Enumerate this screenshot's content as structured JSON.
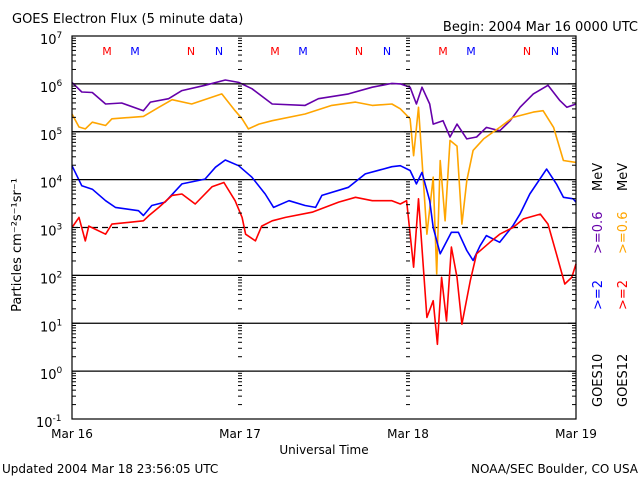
{
  "chart_data": {
    "type": "line",
    "title": "GOES Electron Flux (5 minute data)",
    "begin_label": "Begin: 2004 Mar 16 0000 UTC",
    "xlabel": "Universal Time",
    "ylabel": "Particles cm⁻²s⁻¹sr⁻¹",
    "updated_label": "Updated 2004 Mar 18 23:56:05 UTC",
    "credit_label": "NOAA/SEC Boulder, CO USA",
    "x_unit": "hours since 2004 Mar 16 0000 UTC",
    "xlim": [
      0,
      72
    ],
    "x_ticks": [
      {
        "hour": 0,
        "label": "Mar 16"
      },
      {
        "hour": 24,
        "label": "Mar 17"
      },
      {
        "hour": 48,
        "label": "Mar 18"
      },
      {
        "hour": 72,
        "label": "Mar 19"
      }
    ],
    "y_scale": "log",
    "ylim_log10": [
      -1,
      7
    ],
    "y_tick_base": "10",
    "y_tick_exponents": [
      "-1",
      "0",
      "1",
      "2",
      "3",
      "4",
      "5",
      "6",
      "7"
    ],
    "solid_gridlines_log10": [
      0,
      1,
      2,
      4,
      5,
      6
    ],
    "dashed_gridline_log10": 3,
    "markers": [
      {
        "label": "M",
        "hour": 5,
        "color": "#ff0000"
      },
      {
        "label": "M",
        "hour": 9,
        "color": "#0000ff"
      },
      {
        "label": "N",
        "hour": 17,
        "color": "#ff0000"
      },
      {
        "label": "N",
        "hour": 21,
        "color": "#0000ff"
      },
      {
        "label": "M",
        "hour": 29,
        "color": "#ff0000"
      },
      {
        "label": "M",
        "hour": 33,
        "color": "#0000ff"
      },
      {
        "label": "N",
        "hour": 41,
        "color": "#ff0000"
      },
      {
        "label": "N",
        "hour": 45,
        "color": "#0000ff"
      },
      {
        "label": "M",
        "hour": 53,
        "color": "#ff0000"
      },
      {
        "label": "M",
        "hour": 57,
        "color": "#0000ff"
      },
      {
        "label": "N",
        "hour": 65,
        "color": "#ff0000"
      },
      {
        "label": "N",
        "hour": 69,
        "color": "#0000ff"
      }
    ],
    "legend": {
      "goes10": {
        "sat": "GOES10",
        "e2": ">=2",
        "e06": ">=0.6",
        "unit": "MeV"
      },
      "goes12": {
        "sat": "GOES12",
        "e2": ">=2",
        "e06": ">=0.6",
        "unit": "MeV"
      }
    },
    "series": [
      {
        "name": "GOES10 >=0.6 MeV",
        "color": "#6600aa",
        "points": [
          [
            0,
            6.03
          ],
          [
            1.4,
            5.83
          ],
          [
            2.9,
            5.82
          ],
          [
            4.8,
            5.58
          ],
          [
            7.1,
            5.6
          ],
          [
            10.2,
            5.44
          ],
          [
            11.2,
            5.62
          ],
          [
            13.8,
            5.69
          ],
          [
            15.7,
            5.86
          ],
          [
            19,
            5.97
          ],
          [
            21.9,
            6.08
          ],
          [
            23.8,
            6.03
          ],
          [
            25.7,
            5.9
          ],
          [
            28.6,
            5.58
          ],
          [
            33.3,
            5.55
          ],
          [
            35.2,
            5.69
          ],
          [
            39.5,
            5.79
          ],
          [
            42.9,
            5.93
          ],
          [
            45.7,
            6.01
          ],
          [
            46.9,
            6.0
          ],
          [
            48.3,
            5.93
          ],
          [
            49.2,
            5.58
          ],
          [
            50,
            5.93
          ],
          [
            51.1,
            5.58
          ],
          [
            51.6,
            5.16
          ],
          [
            53,
            5.23
          ],
          [
            54,
            4.89
          ],
          [
            55,
            5.16
          ],
          [
            56.4,
            4.85
          ],
          [
            57.8,
            4.89
          ],
          [
            59.2,
            5.09
          ],
          [
            61.1,
            5.02
          ],
          [
            62.6,
            5.23
          ],
          [
            64,
            5.51
          ],
          [
            65.9,
            5.79
          ],
          [
            68,
            5.97
          ],
          [
            69.7,
            5.65
          ],
          [
            70.7,
            5.51
          ],
          [
            72,
            5.58
          ]
        ]
      },
      {
        "name": "GOES12 >=0.6 MeV",
        "color": "#ffa500",
        "points": [
          [
            0,
            5.37
          ],
          [
            1,
            5.1
          ],
          [
            1.9,
            5.06
          ],
          [
            2.9,
            5.2
          ],
          [
            4.8,
            5.13
          ],
          [
            5.7,
            5.27
          ],
          [
            10.2,
            5.32
          ],
          [
            12.4,
            5.51
          ],
          [
            14.3,
            5.67
          ],
          [
            17.1,
            5.58
          ],
          [
            21.4,
            5.79
          ],
          [
            23.3,
            5.44
          ],
          [
            24.3,
            5.27
          ],
          [
            25.2,
            5.06
          ],
          [
            26.7,
            5.16
          ],
          [
            28.6,
            5.23
          ],
          [
            33.3,
            5.37
          ],
          [
            37.1,
            5.55
          ],
          [
            40.5,
            5.62
          ],
          [
            42.9,
            5.55
          ],
          [
            45.7,
            5.58
          ],
          [
            46.9,
            5.48
          ],
          [
            48.3,
            5.27
          ],
          [
            48.8,
            4.5
          ],
          [
            49.5,
            5.51
          ],
          [
            50.7,
            2.86
          ],
          [
            51.6,
            4.05
          ],
          [
            52.1,
            2.03
          ],
          [
            52.6,
            4.4
          ],
          [
            53.3,
            3.14
          ],
          [
            54,
            4.82
          ],
          [
            55,
            4.7
          ],
          [
            55.7,
            3.07
          ],
          [
            56.4,
            3.98
          ],
          [
            57.3,
            4.61
          ],
          [
            58.8,
            4.85
          ],
          [
            61.1,
            5.09
          ],
          [
            63,
            5.3
          ],
          [
            65.9,
            5.41
          ],
          [
            67.3,
            5.44
          ],
          [
            68.8,
            5.09
          ],
          [
            70.2,
            4.4
          ],
          [
            72,
            4.36
          ]
        ]
      },
      {
        "name": "GOES10 >=2 MeV",
        "color": "#0000ff",
        "points": [
          [
            0,
            4.29
          ],
          [
            1.4,
            3.87
          ],
          [
            2.9,
            3.8
          ],
          [
            4.8,
            3.56
          ],
          [
            6.2,
            3.42
          ],
          [
            9.5,
            3.35
          ],
          [
            10.2,
            3.25
          ],
          [
            11.4,
            3.46
          ],
          [
            13.3,
            3.53
          ],
          [
            15.7,
            3.91
          ],
          [
            19,
            4.01
          ],
          [
            20.5,
            4.26
          ],
          [
            21.9,
            4.41
          ],
          [
            23.8,
            4.29
          ],
          [
            25.7,
            4.05
          ],
          [
            27.6,
            3.7
          ],
          [
            28.8,
            3.42
          ],
          [
            31,
            3.56
          ],
          [
            33.3,
            3.46
          ],
          [
            34.8,
            3.42
          ],
          [
            35.7,
            3.67
          ],
          [
            39.5,
            3.84
          ],
          [
            41.9,
            4.12
          ],
          [
            45.7,
            4.27
          ],
          [
            46.9,
            4.29
          ],
          [
            48.3,
            4.19
          ],
          [
            49.2,
            3.91
          ],
          [
            50,
            4.15
          ],
          [
            51.1,
            3.56
          ],
          [
            51.6,
            3.0
          ],
          [
            52.6,
            2.45
          ],
          [
            54.2,
            2.9
          ],
          [
            55.2,
            2.9
          ],
          [
            56.4,
            2.52
          ],
          [
            57.3,
            2.31
          ],
          [
            58.3,
            2.62
          ],
          [
            59.2,
            2.83
          ],
          [
            61.1,
            2.69
          ],
          [
            63,
            3.04
          ],
          [
            64,
            3.28
          ],
          [
            65.4,
            3.7
          ],
          [
            67.8,
            4.22
          ],
          [
            69.2,
            3.91
          ],
          [
            70.2,
            3.63
          ],
          [
            71.6,
            3.6
          ],
          [
            72,
            3.53
          ]
        ]
      },
      {
        "name": "GOES12 >=2 MeV",
        "color": "#ff0000",
        "points": [
          [
            0,
            3.0
          ],
          [
            1,
            3.21
          ],
          [
            1.9,
            2.72
          ],
          [
            2.4,
            3.03
          ],
          [
            4.8,
            2.86
          ],
          [
            5.7,
            3.07
          ],
          [
            10.2,
            3.14
          ],
          [
            11,
            3.25
          ],
          [
            12.4,
            3.42
          ],
          [
            14.3,
            3.67
          ],
          [
            15.7,
            3.7
          ],
          [
            17.6,
            3.49
          ],
          [
            20,
            3.85
          ],
          [
            21.7,
            3.94
          ],
          [
            23.3,
            3.56
          ],
          [
            24.3,
            3.21
          ],
          [
            24.8,
            2.86
          ],
          [
            26.2,
            2.72
          ],
          [
            27.1,
            3.03
          ],
          [
            28.6,
            3.14
          ],
          [
            30.5,
            3.21
          ],
          [
            34.3,
            3.32
          ],
          [
            38.1,
            3.53
          ],
          [
            40.5,
            3.63
          ],
          [
            42.9,
            3.56
          ],
          [
            45.7,
            3.56
          ],
          [
            46.9,
            3.49
          ],
          [
            47.8,
            3.56
          ],
          [
            48.8,
            2.17
          ],
          [
            49.5,
            3.6
          ],
          [
            50.7,
            1.12
          ],
          [
            51.6,
            1.47
          ],
          [
            52.2,
            0.56
          ],
          [
            52.8,
            1.96
          ],
          [
            53.5,
            1.05
          ],
          [
            54.2,
            2.59
          ],
          [
            55,
            1.96
          ],
          [
            55.7,
            0.98
          ],
          [
            56.9,
            1.89
          ],
          [
            57.8,
            2.45
          ],
          [
            59.7,
            2.69
          ],
          [
            61.1,
            2.86
          ],
          [
            63,
            3.0
          ],
          [
            64.5,
            3.18
          ],
          [
            66.9,
            3.28
          ],
          [
            68,
            3.07
          ],
          [
            69.2,
            2.45
          ],
          [
            70.4,
            1.82
          ],
          [
            71.4,
            1.96
          ],
          [
            72,
            2.24
          ]
        ]
      }
    ]
  }
}
